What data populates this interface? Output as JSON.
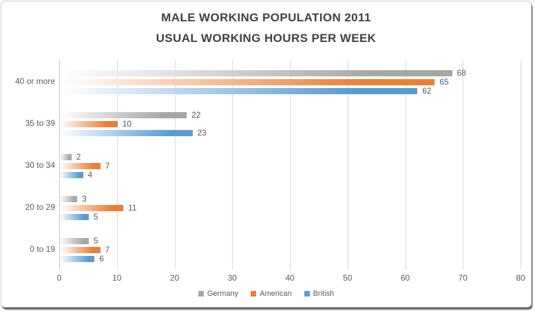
{
  "title": {
    "line1": "MALE WORKING POPULATION 2011",
    "line2": "USUAL WORKING HOURS PER WEEK"
  },
  "chart_data": {
    "type": "bar",
    "orientation": "horizontal",
    "title": "MALE WORKING POPULATION 2011 USUAL WORKING HOURS PER WEEK",
    "categories": [
      "40 or more",
      "35 to 39",
      "30 to 34",
      "20 to 29",
      "0 to 19"
    ],
    "series": [
      {
        "name": "Germany",
        "color": "#A6A6A6",
        "values": [
          68,
          22,
          2,
          3,
          5
        ]
      },
      {
        "name": "American",
        "color": "#ED7D31",
        "values": [
          65,
          10,
          7,
          11,
          7
        ]
      },
      {
        "name": "British",
        "color": "#5B9BD5",
        "values": [
          62,
          23,
          4,
          5,
          6
        ]
      }
    ],
    "x_axis": {
      "min": 0,
      "max": 80,
      "tick_interval": 10,
      "ticks": [
        0,
        10,
        20,
        30,
        40,
        50,
        60,
        70,
        80
      ]
    },
    "ylabel": "",
    "xlabel": "",
    "grid": true,
    "data_labels": true,
    "legend_position": "bottom",
    "bar_fill_style": "gradient-white-to-color"
  },
  "colors": {
    "title_text": "#404040",
    "axis_text": "#595959",
    "gridline": "#d9d9d9"
  }
}
